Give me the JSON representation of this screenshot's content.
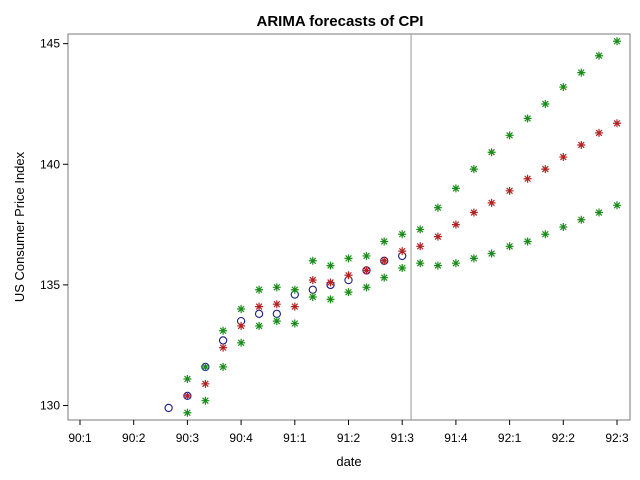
{
  "chart_data": {
    "type": "scatter",
    "title": "ARIMA forecasts of CPI",
    "xlabel": "date",
    "ylabel": "US Consumer Price Index",
    "xlim": [
      0,
      20
    ],
    "ylim": [
      129.4,
      145.4
    ],
    "x_ticks": [
      {
        "x": 0,
        "label": "90:1"
      },
      {
        "x": 2,
        "label": "90:2"
      },
      {
        "x": 4,
        "label": "90:3"
      },
      {
        "x": 6,
        "label": "90:4"
      },
      {
        "x": 8,
        "label": "91:1"
      },
      {
        "x": 10,
        "label": "91:2"
      },
      {
        "x": 12,
        "label": "91:3"
      },
      {
        "x": 14,
        "label": "91:4"
      },
      {
        "x": 16,
        "label": "92:1"
      },
      {
        "x": 18,
        "label": "92:2"
      },
      {
        "x": 20,
        "label": "92:3"
      }
    ],
    "y_ticks": [
      130,
      135,
      140,
      145
    ],
    "reference_line_x": 12.33,
    "grid": false,
    "legend": "none",
    "series": [
      {
        "marker": "circle",
        "color": "#1a1a8c",
        "points": [
          [
            3.3,
            129.9
          ],
          [
            4.0,
            130.4
          ],
          [
            4.67,
            131.6
          ],
          [
            5.33,
            132.7
          ],
          [
            6.0,
            133.5
          ],
          [
            6.67,
            133.8
          ],
          [
            7.33,
            133.8
          ],
          [
            8.0,
            134.6
          ],
          [
            8.67,
            134.8
          ],
          [
            9.33,
            135.0
          ],
          [
            10.0,
            135.2
          ],
          [
            10.67,
            135.6
          ],
          [
            11.33,
            136.0
          ],
          [
            12.0,
            136.2
          ]
        ]
      },
      {
        "marker": "star",
        "color": "#b22222",
        "points": [
          [
            4.0,
            130.4
          ],
          [
            4.67,
            130.9
          ],
          [
            5.33,
            132.4
          ],
          [
            6.0,
            133.3
          ],
          [
            6.67,
            134.1
          ],
          [
            7.33,
            134.2
          ],
          [
            8.0,
            134.1
          ],
          [
            8.67,
            135.2
          ],
          [
            9.33,
            135.1
          ],
          [
            10.0,
            135.4
          ],
          [
            10.67,
            135.6
          ],
          [
            11.33,
            136.0
          ],
          [
            12.0,
            136.4
          ],
          [
            12.67,
            136.6
          ],
          [
            13.33,
            137.0
          ],
          [
            14.0,
            137.5
          ],
          [
            14.67,
            138.0
          ],
          [
            15.33,
            138.4
          ],
          [
            16.0,
            138.9
          ],
          [
            16.67,
            139.4
          ],
          [
            17.33,
            139.8
          ],
          [
            18.0,
            140.3
          ],
          [
            18.67,
            140.8
          ],
          [
            19.33,
            141.3
          ],
          [
            20.0,
            141.7
          ]
        ]
      },
      {
        "marker": "star",
        "color": "#1a8c1a",
        "points": [
          [
            4.0,
            131.1
          ],
          [
            4.67,
            131.6
          ],
          [
            5.33,
            133.1
          ],
          [
            6.0,
            134.0
          ],
          [
            6.67,
            134.8
          ],
          [
            7.33,
            134.9
          ],
          [
            8.0,
            134.8
          ],
          [
            8.67,
            136.0
          ],
          [
            9.33,
            135.8
          ],
          [
            10.0,
            136.1
          ],
          [
            10.67,
            136.2
          ],
          [
            11.33,
            136.8
          ],
          [
            12.0,
            137.1
          ],
          [
            12.67,
            137.3
          ],
          [
            13.33,
            138.2
          ],
          [
            14.0,
            139.0
          ],
          [
            14.67,
            139.8
          ],
          [
            15.33,
            140.5
          ],
          [
            16.0,
            141.2
          ],
          [
            16.67,
            141.9
          ],
          [
            17.33,
            142.5
          ],
          [
            18.0,
            143.2
          ],
          [
            18.67,
            143.8
          ],
          [
            19.33,
            144.5
          ],
          [
            20.0,
            145.1
          ],
          [
            4.0,
            129.7
          ],
          [
            4.67,
            130.2
          ],
          [
            5.33,
            131.6
          ],
          [
            6.0,
            132.6
          ],
          [
            6.67,
            133.3
          ],
          [
            7.33,
            133.5
          ],
          [
            8.0,
            133.4
          ],
          [
            8.67,
            134.5
          ],
          [
            9.33,
            134.4
          ],
          [
            10.0,
            134.7
          ],
          [
            10.67,
            134.9
          ],
          [
            11.33,
            135.3
          ],
          [
            12.0,
            135.7
          ],
          [
            12.67,
            135.9
          ],
          [
            13.33,
            135.8
          ],
          [
            14.0,
            135.9
          ],
          [
            14.67,
            136.1
          ],
          [
            15.33,
            136.3
          ],
          [
            16.0,
            136.6
          ],
          [
            16.67,
            136.8
          ],
          [
            17.33,
            137.1
          ],
          [
            18.0,
            137.4
          ],
          [
            18.67,
            137.7
          ],
          [
            19.33,
            138.0
          ],
          [
            20.0,
            138.3
          ]
        ]
      }
    ]
  }
}
